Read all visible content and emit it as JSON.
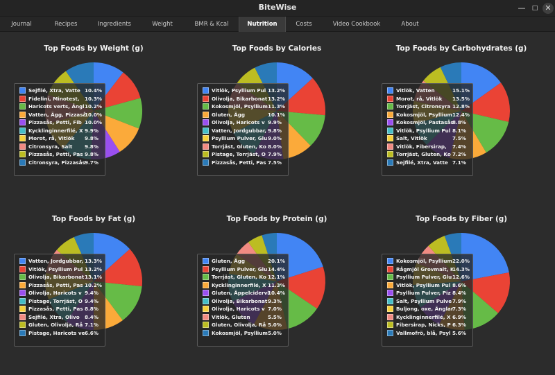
{
  "app": {
    "title": "BiteWise"
  },
  "window_controls": {
    "minimize": "—",
    "maximize": "□",
    "close": "✕"
  },
  "tabs": [
    {
      "label": "Journal",
      "active": false
    },
    {
      "label": "Recipes",
      "active": false
    },
    {
      "label": "Ingredients",
      "active": false
    },
    {
      "label": "Weight",
      "active": false
    },
    {
      "label": "BMR & Kcal",
      "active": false
    },
    {
      "label": "Nutrition",
      "active": true
    },
    {
      "label": "Costs",
      "active": false
    },
    {
      "label": "Video Cookbook",
      "active": false
    },
    {
      "label": "About",
      "active": false
    }
  ],
  "colors": [
    "#4285f4",
    "#ea4335",
    "#66bb47",
    "#fbaa3a",
    "#9a4ff0",
    "#46bdc6",
    "#f7d13b",
    "#f28b82",
    "#bcbd22",
    "#2a7ab8"
  ],
  "chart_data": [
    {
      "type": "pie",
      "title": "Top Foods by Weight (g)",
      "labels": [
        "Sejfilé, Xtra, Vatte",
        "Fideliní, Minotest,",
        "Haricots verts, Ängl",
        "Vatten, Ägg, Pizzaså",
        "Pizzasås, Petti, Fib",
        "Kycklinginnerfilé, X",
        "Morot, rå, Vitlök",
        "Citronsyra, Salt",
        "Pizzasås, Petti, Pas",
        "Citronsyra, Pizzasås"
      ],
      "percents": [
        "10.4%",
        "10.3%",
        "10.2%",
        "10.0%",
        "10.0%",
        "9.9%",
        "9.8%",
        "9.8%",
        "9.8%",
        "9.7%"
      ],
      "values": [
        10.4,
        10.3,
        10.2,
        10.0,
        10.0,
        9.9,
        9.8,
        9.8,
        9.8,
        9.7
      ]
    },
    {
      "type": "pie",
      "title": "Top Foods by Calories",
      "labels": [
        "Vitlök, Psyllium Pul",
        "Olivolja, Bikarbonat",
        "Kokosmjöl, Psyllium",
        "Gluten, Ägg",
        "Olivolja, Haricots v",
        "Vatten, Jordgubbar,",
        "Psyllium Pulver, Glu",
        "Torrjäst, Gluten, Ko",
        "Pistage, Torrjäst, O",
        "Pizzasås, Petti, Pas"
      ],
      "percents": [
        "13.2%",
        "13.2%",
        "11.3%",
        "10.1%",
        "9.9%",
        "9.8%",
        "9.0%",
        "8.0%",
        "7.9%",
        "7.5%"
      ],
      "values": [
        13.2,
        13.2,
        11.3,
        10.1,
        9.9,
        9.8,
        9.0,
        8.0,
        7.9,
        7.5
      ]
    },
    {
      "type": "pie",
      "title": "Top Foods by Carbohydrates (g)",
      "labels": [
        "Vitlök, Vatten",
        "Morot, rå, Vitlök",
        "Torrjäst, Citronsyra",
        "Kokosmjöl, Psyllium",
        "Kokosmjöl, Pastasås",
        "Vitlök, Psyllium Pul",
        "Salt, Vitlök",
        "Vitlök, Fibersirap,",
        "Torrjäst, Gluten, Ko",
        "Sejfilé, Xtra, Vatte"
      ],
      "percents": [
        "15.1%",
        "13.5%",
        "12.8%",
        "12.4%",
        "8.8%",
        "8.1%",
        "7.5%",
        "7.4%",
        "7.2%",
        "7.1%"
      ],
      "values": [
        15.1,
        13.5,
        12.8,
        12.4,
        8.8,
        8.1,
        7.5,
        7.4,
        7.2,
        7.1
      ]
    },
    {
      "type": "pie",
      "title": "Top Foods by Fat (g)",
      "labels": [
        "Vatten, Jordgubbar,",
        "Vitlök, Psyllium Pul",
        "Olivolja, Bikarbonat",
        "Pizzasås, Petti, Pas",
        "Olivolja, Haricots v",
        "Pistage, Torrjäst, O",
        "Pizzasås, Petti, Pas",
        "Sejfilé, Xtra, Olivo",
        "Gluten, Olivolja, Rå",
        "Pistage, Haricots ve"
      ],
      "percents": [
        "13.3%",
        "13.2%",
        "13.1%",
        "10.2%",
        "9.4%",
        "9.4%",
        "8.8%",
        "8.4%",
        "7.1%",
        "6.6%"
      ],
      "values": [
        13.3,
        13.2,
        13.1,
        10.2,
        9.4,
        9.4,
        8.8,
        8.4,
        7.1,
        6.6
      ]
    },
    {
      "type": "pie",
      "title": "Top Foods by Protein (g)",
      "labels": [
        "Gluten, Ägg",
        "Psyllium Pulver, Glu",
        "Torrjäst, Gluten, Ko",
        "Kycklinginnerfilé, X",
        "Gluten, Äppelcidervi",
        "Olivolja, Bikarbonat",
        "Olivolja, Haricots v",
        "Vitlök, Gluten",
        "Gluten, Olivolja, Rå",
        "Kokosmjöl, Psyllium"
      ],
      "percents": [
        "20.1%",
        "14.4%",
        "12.1%",
        "11.3%",
        "10.4%",
        "9.3%",
        "7.0%",
        "5.5%",
        "5.0%",
        "5.0%"
      ],
      "values": [
        20.1,
        14.4,
        12.1,
        11.3,
        10.4,
        9.3,
        7.0,
        5.5,
        5.0,
        5.0
      ]
    },
    {
      "type": "pie",
      "title": "Top Foods by Fiber (g)",
      "labels": [
        "Kokosmjöl, Psyllium",
        "Rågmjöl Grovmalt, Ku",
        "Psyllium Pulver, Glu",
        "Vitlök, Psyllium Pul",
        "Psyllium Pulver, Piz",
        "Salt, Psyllium Pulve",
        "Buljong, oxe, Änglam",
        "Kycklinginnerfilé, X",
        "Fibersirap, Nicks, P",
        "Vallmofrö, blå, Psyl"
      ],
      "percents": [
        "22.0%",
        "14.3%",
        "12.6%",
        "8.6%",
        "8.4%",
        "7.9%",
        "7.3%",
        "6.9%",
        "6.3%",
        "5.6%"
      ],
      "values": [
        22.0,
        14.3,
        12.6,
        8.6,
        8.4,
        7.9,
        7.3,
        6.9,
        6.3,
        5.6
      ]
    }
  ]
}
